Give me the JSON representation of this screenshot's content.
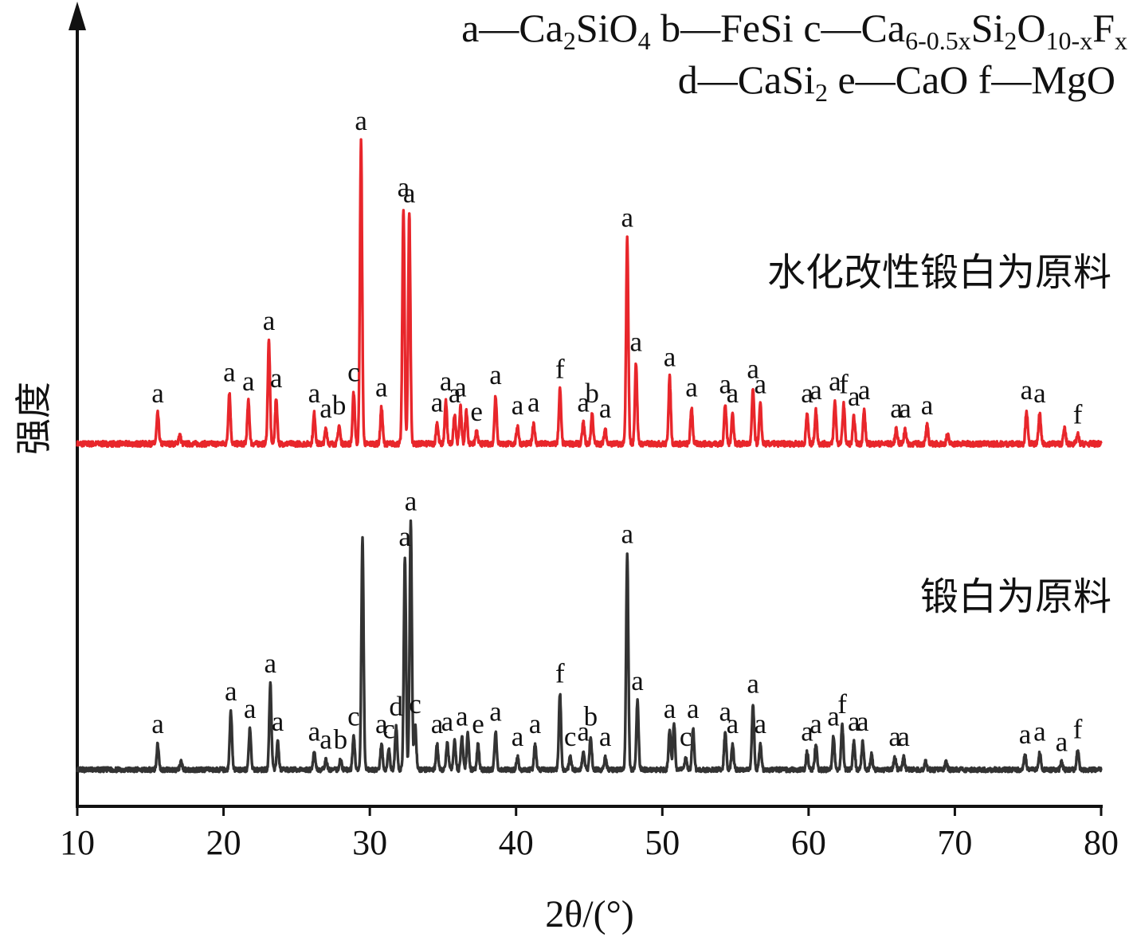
{
  "chart_data": {
    "type": "line",
    "xlabel": "2θ/(°)",
    "ylabel": "强度",
    "xlim": [
      10,
      80
    ],
    "x_ticks": [
      10,
      20,
      30,
      40,
      50,
      60,
      70,
      80
    ],
    "grid": false,
    "legend_lines": [
      [
        {
          "text": "a—Ca",
          "sub": false
        },
        {
          "text": "2",
          "sub": true
        },
        {
          "text": "SiO",
          "sub": false
        },
        {
          "text": "4",
          "sub": true
        },
        {
          "text": "   b—FeSi   c—Ca",
          "sub": false
        },
        {
          "text": "6-0.5x",
          "sub": true
        },
        {
          "text": "Si",
          "sub": false
        },
        {
          "text": "2",
          "sub": true
        },
        {
          "text": "O",
          "sub": false
        },
        {
          "text": "10-x",
          "sub": true
        },
        {
          "text": "F",
          "sub": false
        },
        {
          "text": "x",
          "sub": true
        }
      ],
      [
        {
          "text": "d—CaSi",
          "sub": false
        },
        {
          "text": "2",
          "sub": true
        },
        {
          "text": "    e—CaO   f—MgO",
          "sub": false
        }
      ]
    ],
    "series": [
      {
        "name": "水化改性锻白为原料",
        "color": "#e8262b",
        "peaks": [
          {
            "x": 15.5,
            "h": 0.1,
            "label": "a"
          },
          {
            "x": 17.0,
            "h": 0.03,
            "label": ""
          },
          {
            "x": 20.4,
            "h": 0.17,
            "label": "a"
          },
          {
            "x": 21.7,
            "h": 0.14,
            "label": "a"
          },
          {
            "x": 23.1,
            "h": 0.34,
            "label": "a"
          },
          {
            "x": 23.6,
            "h": 0.15,
            "label": "a"
          },
          {
            "x": 26.2,
            "h": 0.1,
            "label": "a"
          },
          {
            "x": 27.0,
            "h": 0.05,
            "label": "a"
          },
          {
            "x": 27.9,
            "h": 0.06,
            "label": "b"
          },
          {
            "x": 28.9,
            "h": 0.17,
            "label": "c"
          },
          {
            "x": 29.4,
            "h": 1.0,
            "label": "a"
          },
          {
            "x": 30.8,
            "h": 0.12,
            "label": "a"
          },
          {
            "x": 32.3,
            "h": 0.78,
            "label": "a"
          },
          {
            "x": 32.7,
            "h": 0.76,
            "label": "a"
          },
          {
            "x": 34.6,
            "h": 0.07,
            "label": "a"
          },
          {
            "x": 35.2,
            "h": 0.14,
            "label": "a"
          },
          {
            "x": 35.8,
            "h": 0.1,
            "label": "a"
          },
          {
            "x": 36.2,
            "h": 0.12,
            "label": "a"
          },
          {
            "x": 36.6,
            "h": 0.11,
            "label": ""
          },
          {
            "x": 37.3,
            "h": 0.04,
            "label": "e"
          },
          {
            "x": 38.6,
            "h": 0.16,
            "label": "a"
          },
          {
            "x": 40.1,
            "h": 0.06,
            "label": "a"
          },
          {
            "x": 41.2,
            "h": 0.07,
            "label": "a"
          },
          {
            "x": 43.0,
            "h": 0.18,
            "label": "f"
          },
          {
            "x": 44.6,
            "h": 0.07,
            "label": "a"
          },
          {
            "x": 45.2,
            "h": 0.1,
            "label": "b"
          },
          {
            "x": 46.1,
            "h": 0.05,
            "label": "a"
          },
          {
            "x": 47.6,
            "h": 0.68,
            "label": "a"
          },
          {
            "x": 48.2,
            "h": 0.27,
            "label": "a"
          },
          {
            "x": 50.5,
            "h": 0.22,
            "label": "a"
          },
          {
            "x": 52.0,
            "h": 0.12,
            "label": "a"
          },
          {
            "x": 54.3,
            "h": 0.13,
            "label": "a"
          },
          {
            "x": 54.8,
            "h": 0.1,
            "label": "a"
          },
          {
            "x": 56.2,
            "h": 0.18,
            "label": "a"
          },
          {
            "x": 56.7,
            "h": 0.13,
            "label": "a"
          },
          {
            "x": 59.9,
            "h": 0.1,
            "label": "a"
          },
          {
            "x": 60.5,
            "h": 0.11,
            "label": "a"
          },
          {
            "x": 61.8,
            "h": 0.14,
            "label": "a"
          },
          {
            "x": 62.4,
            "h": 0.13,
            "label": "f"
          },
          {
            "x": 63.1,
            "h": 0.09,
            "label": "a"
          },
          {
            "x": 63.8,
            "h": 0.11,
            "label": "a"
          },
          {
            "x": 66.0,
            "h": 0.05,
            "label": "a"
          },
          {
            "x": 66.6,
            "h": 0.05,
            "label": "a"
          },
          {
            "x": 68.1,
            "h": 0.06,
            "label": "a"
          },
          {
            "x": 69.5,
            "h": 0.03,
            "label": ""
          },
          {
            "x": 74.9,
            "h": 0.11,
            "label": "a"
          },
          {
            "x": 75.8,
            "h": 0.1,
            "label": "a"
          },
          {
            "x": 77.5,
            "h": 0.05,
            "label": ""
          },
          {
            "x": 78.4,
            "h": 0.03,
            "label": "f"
          }
        ]
      },
      {
        "name": "锻白为原料",
        "color": "#333333",
        "peaks": [
          {
            "x": 15.5,
            "h": 0.1,
            "label": "a"
          },
          {
            "x": 17.1,
            "h": 0.03,
            "label": ""
          },
          {
            "x": 20.5,
            "h": 0.23,
            "label": "a"
          },
          {
            "x": 21.8,
            "h": 0.16,
            "label": "a"
          },
          {
            "x": 23.2,
            "h": 0.34,
            "label": "a"
          },
          {
            "x": 23.7,
            "h": 0.11,
            "label": "a"
          },
          {
            "x": 26.2,
            "h": 0.07,
            "label": "a"
          },
          {
            "x": 27.0,
            "h": 0.04,
            "label": "a"
          },
          {
            "x": 28.0,
            "h": 0.04,
            "label": "b"
          },
          {
            "x": 28.9,
            "h": 0.13,
            "label": "c"
          },
          {
            "x": 29.5,
            "h": 0.91,
            "label": ""
          },
          {
            "x": 30.8,
            "h": 0.1,
            "label": "a"
          },
          {
            "x": 31.3,
            "h": 0.08,
            "label": "c"
          },
          {
            "x": 31.8,
            "h": 0.17,
            "label": "d"
          },
          {
            "x": 32.4,
            "h": 0.84,
            "label": "a"
          },
          {
            "x": 32.8,
            "h": 0.98,
            "label": "a"
          },
          {
            "x": 33.1,
            "h": 0.18,
            "label": "c"
          },
          {
            "x": 34.6,
            "h": 0.1,
            "label": "a"
          },
          {
            "x": 35.3,
            "h": 0.11,
            "label": "a"
          },
          {
            "x": 35.8,
            "h": 0.12,
            "label": ""
          },
          {
            "x": 36.3,
            "h": 0.13,
            "label": "a"
          },
          {
            "x": 36.7,
            "h": 0.14,
            "label": ""
          },
          {
            "x": 37.4,
            "h": 0.1,
            "label": "e"
          },
          {
            "x": 38.6,
            "h": 0.15,
            "label": "a"
          },
          {
            "x": 40.1,
            "h": 0.05,
            "label": "a"
          },
          {
            "x": 41.3,
            "h": 0.1,
            "label": "a"
          },
          {
            "x": 43.0,
            "h": 0.3,
            "label": "f"
          },
          {
            "x": 43.7,
            "h": 0.05,
            "label": "c"
          },
          {
            "x": 44.6,
            "h": 0.07,
            "label": "a"
          },
          {
            "x": 45.1,
            "h": 0.13,
            "label": "b"
          },
          {
            "x": 46.1,
            "h": 0.05,
            "label": "a"
          },
          {
            "x": 47.6,
            "h": 0.85,
            "label": "a"
          },
          {
            "x": 48.3,
            "h": 0.27,
            "label": "a"
          },
          {
            "x": 50.5,
            "h": 0.16,
            "label": "a"
          },
          {
            "x": 50.8,
            "h": 0.18,
            "label": ""
          },
          {
            "x": 51.6,
            "h": 0.05,
            "label": "c"
          },
          {
            "x": 52.1,
            "h": 0.16,
            "label": "a"
          },
          {
            "x": 54.3,
            "h": 0.15,
            "label": "a"
          },
          {
            "x": 54.8,
            "h": 0.1,
            "label": "a"
          },
          {
            "x": 56.2,
            "h": 0.26,
            "label": "a"
          },
          {
            "x": 56.7,
            "h": 0.1,
            "label": "a"
          },
          {
            "x": 59.9,
            "h": 0.07,
            "label": "a"
          },
          {
            "x": 60.5,
            "h": 0.1,
            "label": "a"
          },
          {
            "x": 61.7,
            "h": 0.13,
            "label": "a"
          },
          {
            "x": 62.3,
            "h": 0.18,
            "label": "f"
          },
          {
            "x": 63.1,
            "h": 0.11,
            "label": "a"
          },
          {
            "x": 63.7,
            "h": 0.11,
            "label": "a"
          },
          {
            "x": 64.3,
            "h": 0.06,
            "label": ""
          },
          {
            "x": 65.9,
            "h": 0.05,
            "label": "a"
          },
          {
            "x": 66.5,
            "h": 0.05,
            "label": "a"
          },
          {
            "x": 68.0,
            "h": 0.03,
            "label": ""
          },
          {
            "x": 69.4,
            "h": 0.03,
            "label": ""
          },
          {
            "x": 74.8,
            "h": 0.06,
            "label": "a"
          },
          {
            "x": 75.8,
            "h": 0.07,
            "label": "a"
          },
          {
            "x": 77.3,
            "h": 0.03,
            "label": "a"
          },
          {
            "x": 78.4,
            "h": 0.08,
            "label": "f"
          }
        ]
      }
    ]
  }
}
